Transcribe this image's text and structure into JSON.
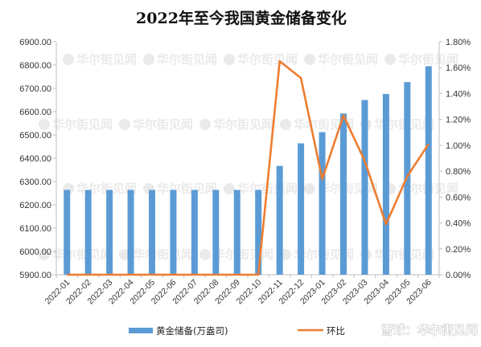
{
  "watermark_text": "华尔街见闻",
  "corner_watermark": "雪球：华尔街见闻",
  "chart_data": {
    "type": "bar+line",
    "title": "2022年至今我国黄金储备变化",
    "categories": [
      "2022-01",
      "2022-02",
      "2022-03",
      "2022-04",
      "2022-05",
      "2022-06",
      "2022-07",
      "2022-08",
      "2022-09",
      "2022-10",
      "2022-11",
      "2022-12",
      "2023-01",
      "2023-02",
      "2023-03",
      "2023-04",
      "2023-05",
      "2023-06"
    ],
    "series": [
      {
        "name": "黄金储备(万盎司)",
        "type": "bar",
        "axis": "left",
        "color": "#5b9bd5",
        "values": [
          6264,
          6264,
          6264,
          6264,
          6264,
          6264,
          6264,
          6264,
          6264,
          6264,
          6367,
          6464,
          6512,
          6592,
          6650,
          6676,
          6727,
          6795
        ]
      },
      {
        "name": "环比",
        "type": "line",
        "axis": "right",
        "color": "#ed7d31",
        "values": [
          0,
          0,
          0,
          0,
          0,
          0,
          0,
          0,
          0,
          0,
          1.65,
          1.52,
          0.74,
          1.23,
          0.88,
          0.39,
          0.76,
          1.01
        ]
      }
    ],
    "left_axis": {
      "min": 5900,
      "max": 6900,
      "step": 100,
      "tick_labels": [
        "5900.00",
        "6000.00",
        "6100.00",
        "6200.00",
        "6300.00",
        "6400.00",
        "6500.00",
        "6600.00",
        "6700.00",
        "6800.00",
        "6900.00"
      ]
    },
    "right_axis": {
      "min": 0,
      "max": 1.8,
      "step": 0.2,
      "unit": "%",
      "tick_labels": [
        "0.00%",
        "0.20%",
        "0.40%",
        "0.60%",
        "0.80%",
        "1.00%",
        "1.20%",
        "1.40%",
        "1.60%",
        "1.80%"
      ]
    },
    "grid": false,
    "legend_position": "bottom"
  }
}
